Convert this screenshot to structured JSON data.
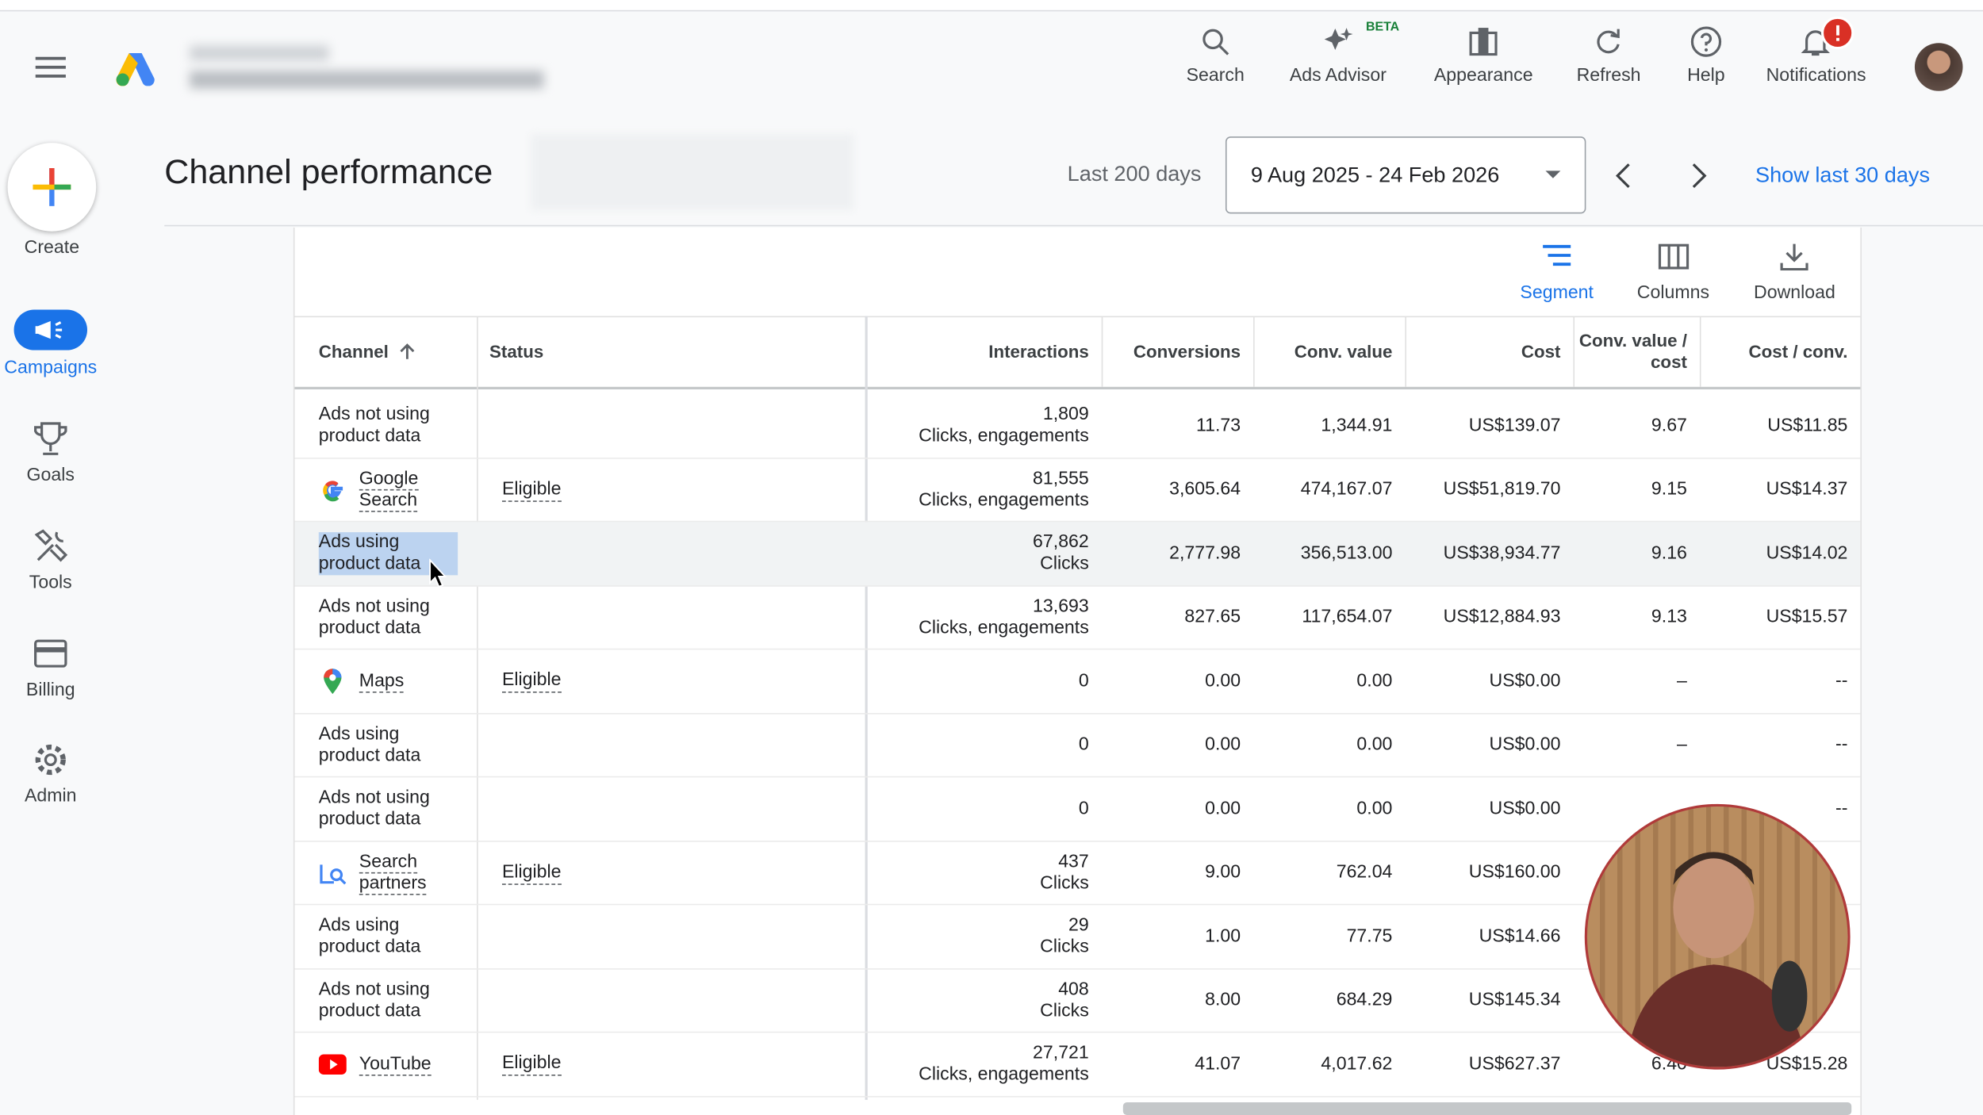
{
  "header": {
    "nav": [
      "Search",
      "Ads Advisor",
      "Appearance",
      "Refresh",
      "Help",
      "Notifications"
    ],
    "beta_badge": "BETA"
  },
  "sidebar": {
    "create": "Create",
    "items": [
      "Campaigns",
      "Goals",
      "Tools",
      "Billing",
      "Admin"
    ]
  },
  "page": {
    "title": "Channel performance",
    "date_preset": "Last 200 days",
    "date_range": "9 Aug 2025 - 24 Feb 2026",
    "show_last": "Show last 30 days"
  },
  "toolbar": [
    "Segment",
    "Columns",
    "Download"
  ],
  "table": {
    "columns": [
      "Channel",
      "Status",
      "Interactions",
      "Conversions",
      "Conv. value",
      "Cost",
      "Conv. value / cost",
      "Cost / conv."
    ],
    "rows": [
      {
        "channel": "Ads not using product data",
        "interactions": "1,809",
        "interaction_type": "Clicks, engagements",
        "conversions": "11.73",
        "conv_value": "1,344.91",
        "cost": "US$139.07",
        "value_per_cost": "9.67",
        "cost_per_conv": "US$11.85"
      },
      {
        "channel": "Google Search",
        "status": "Eligible",
        "interactions": "81,555",
        "interaction_type": "Clicks, engagements",
        "conversions": "3,605.64",
        "conv_value": "474,167.07",
        "cost": "US$51,819.70",
        "value_per_cost": "9.15",
        "cost_per_conv": "US$14.37"
      },
      {
        "channel": "Ads using product data",
        "interactions": "67,862",
        "interaction_type": "Clicks",
        "conversions": "2,777.98",
        "conv_value": "356,513.00",
        "cost": "US$38,934.77",
        "value_per_cost": "9.16",
        "cost_per_conv": "US$14.02"
      },
      {
        "channel": "Ads not using product data",
        "interactions": "13,693",
        "interaction_type": "Clicks, engagements",
        "conversions": "827.65",
        "conv_value": "117,654.07",
        "cost": "US$12,884.93",
        "value_per_cost": "9.13",
        "cost_per_conv": "US$15.57"
      },
      {
        "channel": "Maps",
        "status": "Eligible",
        "interactions": "0",
        "conversions": "0.00",
        "conv_value": "0.00",
        "cost": "US$0.00",
        "value_per_cost": "–",
        "cost_per_conv": "--"
      },
      {
        "channel": "Ads using product data",
        "interactions": "0",
        "conversions": "0.00",
        "conv_value": "0.00",
        "cost": "US$0.00",
        "value_per_cost": "–",
        "cost_per_conv": "--"
      },
      {
        "channel": "Ads not using product data",
        "interactions": "0",
        "conversions": "0.00",
        "conv_value": "0.00",
        "cost": "US$0.00",
        "cost_per_conv": "--"
      },
      {
        "channel": "Search partners",
        "status": "Eligible",
        "interactions": "437",
        "interaction_type": "Clicks",
        "conversions": "9.00",
        "conv_value": "762.04",
        "cost": "US$160.00"
      },
      {
        "channel": "Ads using product data",
        "interactions": "29",
        "interaction_type": "Clicks",
        "conversions": "1.00",
        "conv_value": "77.75",
        "cost": "US$14.66"
      },
      {
        "channel": "Ads not using product data",
        "interactions": "408",
        "interaction_type": "Clicks",
        "conversions": "8.00",
        "conv_value": "684.29",
        "cost": "US$145.34"
      },
      {
        "channel": "YouTube",
        "status": "Eligible",
        "interactions": "27,721",
        "interaction_type": "Clicks, engagements",
        "conversions": "41.07",
        "conv_value": "4,017.62",
        "cost": "US$627.37",
        "value_per_cost": "6.40",
        "cost_per_conv": "US$15.28"
      }
    ]
  }
}
